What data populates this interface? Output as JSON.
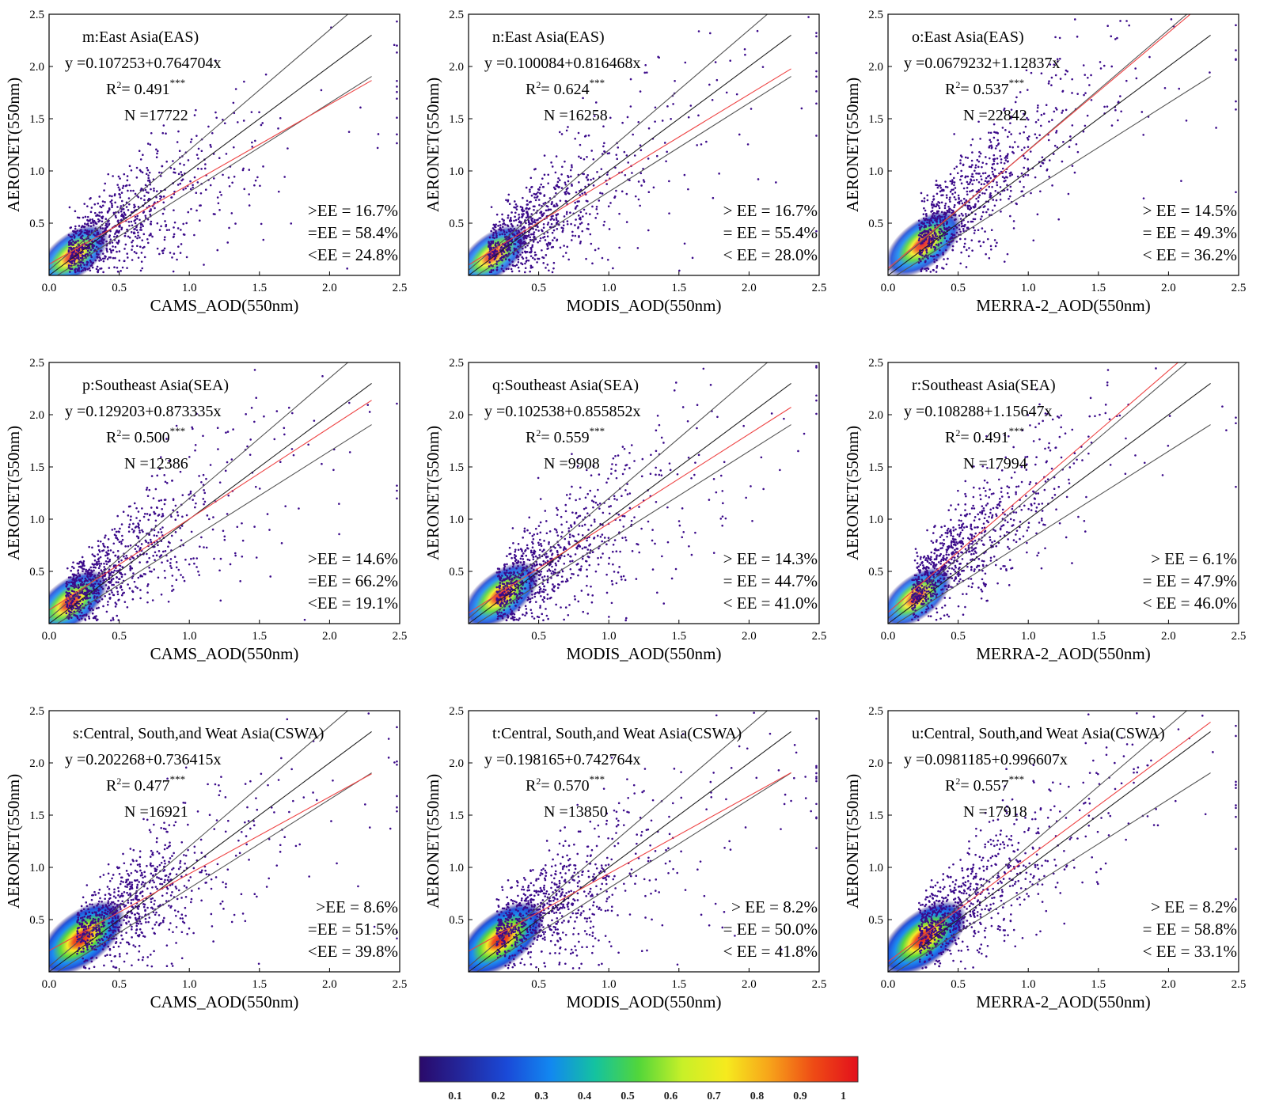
{
  "figure": {
    "colorbar": {
      "ticks": [
        "0.1",
        "0.2",
        "0.3",
        "0.4",
        "0.5",
        "0.6",
        "0.7",
        "0.8",
        "0.9",
        "1"
      ],
      "colormap": [
        "#2a0a6a",
        "#23289e",
        "#1a4ad8",
        "#1288f0",
        "#14c2a0",
        "#52d63a",
        "#c8f028",
        "#f6ea1e",
        "#f7a21a",
        "#ee4a15",
        "#e3101c"
      ]
    },
    "colors": {
      "fit_line": "#ee4444",
      "ee_line": "#555555",
      "one_to_one": "#222222",
      "point": "#3b0a8a"
    }
  },
  "chart_data": [
    {
      "type": "scatter",
      "panel": "m",
      "title": "m:East Asia(EAS)",
      "equation": "y =0.107253+0.764704x",
      "r2_label": "R",
      "r2_value": "= 0.491",
      "stars": "***",
      "n_label": "N =17722",
      "xlabel": "CAMS_AOD(550nm)",
      "ylabel": "AERONET(550nm)",
      "xlim": [
        0,
        2.5
      ],
      "ylim": [
        0,
        2.5
      ],
      "xticks": [
        "0.0",
        "0.5",
        "1.0",
        "1.5",
        "2.0",
        "2.5"
      ],
      "yticks": [
        "0.5",
        "1.0",
        "1.5",
        "2.0",
        "2.5"
      ],
      "intercept": 0.107253,
      "slope": 0.764704,
      "ee_above": ">EE = 16.7%",
      "ee_within": "=EE = 58.4%",
      "ee_below": "<EE = 24.8%",
      "peak_density": 0.62,
      "density_center": [
        0.12,
        0.14
      ]
    },
    {
      "type": "scatter",
      "panel": "n",
      "title": "n:East Asia(EAS)",
      "equation": "y =0.100084+0.816468x",
      "r2_label": "R",
      "r2_value": "= 0.624",
      "stars": "***",
      "n_label": "N =16258",
      "xlabel": "MODIS_AOD(550nm)",
      "ylabel": "AERONET(550nm)",
      "xlim": [
        0,
        2.5
      ],
      "ylim": [
        0,
        2.5
      ],
      "xticks": [
        "0.5",
        "1.0",
        "1.5",
        "2.0",
        "2.5"
      ],
      "yticks": [
        "0.5",
        "1.0",
        "1.5",
        "2.0",
        "2.5"
      ],
      "intercept": 0.100084,
      "slope": 0.816468,
      "ee_above": "> EE = 16.7%",
      "ee_within": "= EE = 55.4%",
      "ee_below": "< EE = 28.0%",
      "peak_density": 0.6,
      "density_center": [
        0.12,
        0.14
      ]
    },
    {
      "type": "scatter",
      "panel": "o",
      "title": "o:East Asia(EAS)",
      "equation": "y =0.0679232+1.12837x",
      "r2_label": "R",
      "r2_value": "= 0.537",
      "stars": "***",
      "n_label": "N =22842",
      "xlabel": "MERRA-2_AOD(550nm)",
      "ylabel": "AERONET(550nm)",
      "xlim": [
        0,
        2.5
      ],
      "ylim": [
        0,
        2.5
      ],
      "xticks": [
        "0.0",
        "0.5",
        "1.0",
        "1.5",
        "2.0",
        "2.5"
      ],
      "yticks": [
        "0.5",
        "1.0",
        "1.5",
        "2.0",
        "2.5"
      ],
      "intercept": 0.0679232,
      "slope": 1.12837,
      "ee_above": "> EE = 14.5%",
      "ee_within": "= EE = 49.3%",
      "ee_below": "< EE = 36.2%",
      "peak_density": 0.72,
      "density_center": [
        0.2,
        0.25
      ]
    },
    {
      "type": "scatter",
      "panel": "p",
      "title": "p:Southeast Asia(SEA)",
      "equation": "y =0.129203+0.873335x",
      "r2_label": "R",
      "r2_value": "= 0.500",
      "stars": "***",
      "n_label": "N =12386",
      "xlabel": "CAMS_AOD(550nm)",
      "ylabel": "AERONET(550nm)",
      "xlim": [
        0,
        2.5
      ],
      "ylim": [
        0,
        2.5
      ],
      "xticks": [
        "0.0",
        "0.5",
        "1.0",
        "1.5",
        "2.0",
        "2.5"
      ],
      "yticks": [
        "0.5",
        "1.0",
        "1.5",
        "2.0",
        "2.5"
      ],
      "intercept": 0.129203,
      "slope": 0.873335,
      "ee_above": ">EE = 14.6%",
      "ee_within": "=EE = 66.2%",
      "ee_below": "<EE = 19.1%",
      "peak_density": 0.68,
      "density_center": [
        0.1,
        0.15
      ]
    },
    {
      "type": "scatter",
      "panel": "q",
      "title": "q:Southeast Asia(SEA)",
      "equation": "y =0.102538+0.855852x",
      "r2_label": "R",
      "r2_value": "= 0.559",
      "stars": "***",
      "n_label": "N =9908",
      "xlabel": "MODIS_AOD(550nm)",
      "ylabel": "AERONET(550nm)",
      "xlim": [
        0,
        2.5
      ],
      "ylim": [
        0,
        2.5
      ],
      "xticks": [
        "0.5",
        "1.0",
        "1.5",
        "2.0",
        "2.5"
      ],
      "yticks": [
        "0.5",
        "1.0",
        "1.5",
        "2.0",
        "2.5"
      ],
      "intercept": 0.102538,
      "slope": 0.855852,
      "ee_above": "> EE = 14.3%",
      "ee_within": "= EE = 44.7%",
      "ee_below": "< EE = 41.0%",
      "peak_density": 0.72,
      "density_center": [
        0.18,
        0.22
      ]
    },
    {
      "type": "scatter",
      "panel": "r",
      "title": "r:Southeast Asia(SEA)",
      "equation": "y =0.108288+1.15647x",
      "r2_label": "R",
      "r2_value": "= 0.491",
      "stars": "***",
      "n_label": "N =17994",
      "xlabel": "MERRA-2_AOD(550nm)",
      "ylabel": "AERONET(550nm)",
      "xlim": [
        0,
        2.5
      ],
      "ylim": [
        0,
        2.5
      ],
      "xticks": [
        "0.0",
        "0.5",
        "1.0",
        "1.5",
        "2.0",
        "2.5"
      ],
      "yticks": [
        "0.5",
        "1.0",
        "1.5",
        "2.0",
        "2.5"
      ],
      "intercept": 0.108288,
      "slope": 1.15647,
      "ee_above": "> EE = 6.1%",
      "ee_within": "= EE = 47.9%",
      "ee_below": "< EE = 46.0%",
      "peak_density": 0.6,
      "density_center": [
        0.15,
        0.2
      ]
    },
    {
      "type": "scatter",
      "panel": "s",
      "title": "s:Central, South,and Weat Asia(CSWA)",
      "equation": "y =0.202268+0.736415x",
      "r2_label": "R",
      "r2_value": "= 0.477",
      "stars": "***",
      "n_label": "N =16921",
      "xlabel": "CAMS_AOD(550nm)",
      "ylabel": "AERONET(550nm)",
      "xlim": [
        0,
        2.5
      ],
      "ylim": [
        0,
        2.5
      ],
      "xticks": [
        "0.0",
        "0.5",
        "1.0",
        "1.5",
        "2.0",
        "2.5"
      ],
      "yticks": [
        "0.5",
        "1.0",
        "1.5",
        "2.0",
        "2.5"
      ],
      "intercept": 0.202268,
      "slope": 0.736415,
      "ee_above": ">EE = 8.6%",
      "ee_within": "=EE = 51.5%",
      "ee_below": "<EE = 39.8%",
      "peak_density": 0.9,
      "density_center": [
        0.18,
        0.27
      ]
    },
    {
      "type": "scatter",
      "panel": "t",
      "title": "t:Central, South,and Weat Asia(CSWA)",
      "equation": "y =0.198165+0.742764x",
      "r2_label": "R",
      "r2_value": "= 0.570",
      "stars": "***",
      "n_label": "N =13850",
      "xlabel": "MODIS_AOD(550nm)",
      "ylabel": "AERONET(550nm)",
      "xlim": [
        0,
        2.5
      ],
      "ylim": [
        0,
        2.5
      ],
      "xticks": [
        "0.5",
        "1.0",
        "1.5",
        "2.0",
        "2.5"
      ],
      "yticks": [
        "0.5",
        "1.0",
        "1.5",
        "2.0",
        "2.5"
      ],
      "intercept": 0.198165,
      "slope": 0.742764,
      "ee_above": "> EE = 8.2%",
      "ee_within": "= EE = 50.0%",
      "ee_below": "< EE = 41.8%",
      "peak_density": 0.9,
      "density_center": [
        0.18,
        0.26
      ]
    },
    {
      "type": "scatter",
      "panel": "u",
      "title": "u:Central, South,and Weat Asia(CSWA)",
      "equation": "y =0.0981185+0.996607x",
      "r2_label": "R",
      "r2_value": "= 0.557",
      "stars": "***",
      "n_label": "N =17918",
      "xlabel": "MERRA-2_AOD(550nm)",
      "ylabel": "AERONET(550nm)",
      "xlim": [
        0,
        2.5
      ],
      "ylim": [
        0,
        2.5
      ],
      "xticks": [
        "0.0",
        "0.5",
        "1.0",
        "1.5",
        "2.0",
        "2.5"
      ],
      "yticks": [
        "0.5",
        "1.0",
        "1.5",
        "2.0",
        "2.5"
      ],
      "intercept": 0.0981185,
      "slope": 0.996607,
      "ee_above": "> EE = 8.2%",
      "ee_within": "= EE = 58.8%",
      "ee_below": "< EE = 33.1%",
      "peak_density": 0.9,
      "density_center": [
        0.2,
        0.27
      ]
    }
  ]
}
